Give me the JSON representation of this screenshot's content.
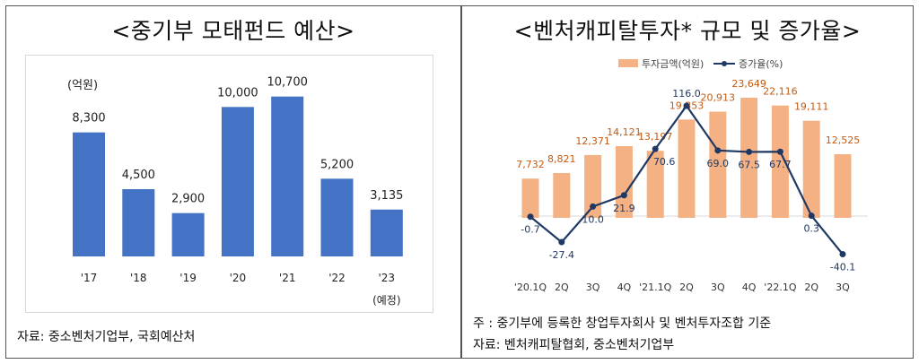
{
  "left": {
    "title": "<중기부 모태펀드 예산>",
    "source": "자료: 중소벤처기업부, 국회예산처",
    "chart_data": {
      "type": "bar",
      "unit_label": "(억원)",
      "categories": [
        "'17",
        "'18",
        "'19",
        "'20",
        "'21",
        "'22",
        "'23"
      ],
      "category_notes": [
        "",
        "",
        "",
        "",
        "",
        "",
        "(예정)"
      ],
      "values": [
        8300,
        4500,
        2900,
        10000,
        10700,
        5200,
        3135
      ],
      "value_labels": [
        "8,300",
        "4,500",
        "2,900",
        "10,000",
        "10,700",
        "5,200",
        "3,135"
      ],
      "ylim": [
        0,
        12000
      ],
      "color": "#4472C4"
    }
  },
  "right": {
    "title": "<벤처캐피탈투자* 규모 및 증가율>",
    "footnote": "주 : 중기부에 등록한 창업투자회사 및 벤처투자조합 기준",
    "source": "자료: 벤처캐피탈협회, 중소벤처기업부",
    "chart_data": {
      "type": "bar",
      "categories": [
        "'20.1Q",
        "2Q",
        "3Q",
        "4Q",
        "'21.1Q",
        "2Q",
        "3Q",
        "4Q",
        "'22.1Q",
        "2Q",
        "3Q"
      ],
      "series": [
        {
          "name": "투자금액(억원)",
          "type": "bar",
          "color": "#F4B183",
          "label_color": "#C55A11",
          "values": [
            7732,
            8821,
            12371,
            14121,
            13197,
            19353,
            20913,
            23649,
            22116,
            19111,
            12525
          ],
          "labels": [
            "7,732",
            "8,821",
            "12,371",
            "14,121",
            "13,197",
            "19,353",
            "20,913",
            "23,649",
            "22,116",
            "19,111",
            "12,525"
          ]
        },
        {
          "name": "증가율(%)",
          "type": "line",
          "color": "#1F3864",
          "label_color": "#1F3864",
          "values": [
            -0.7,
            -27.4,
            10.0,
            21.9,
            70.6,
            116.0,
            69.0,
            67.5,
            67.7,
            0.3,
            -40.1
          ],
          "labels": [
            "-0.7",
            "-27.4",
            "10.0",
            "21.9",
            "70.6",
            "116.0",
            "69.0",
            "67.5",
            "67.7",
            "0.3",
            "-40.1"
          ]
        }
      ],
      "legend_position": "top"
    }
  }
}
